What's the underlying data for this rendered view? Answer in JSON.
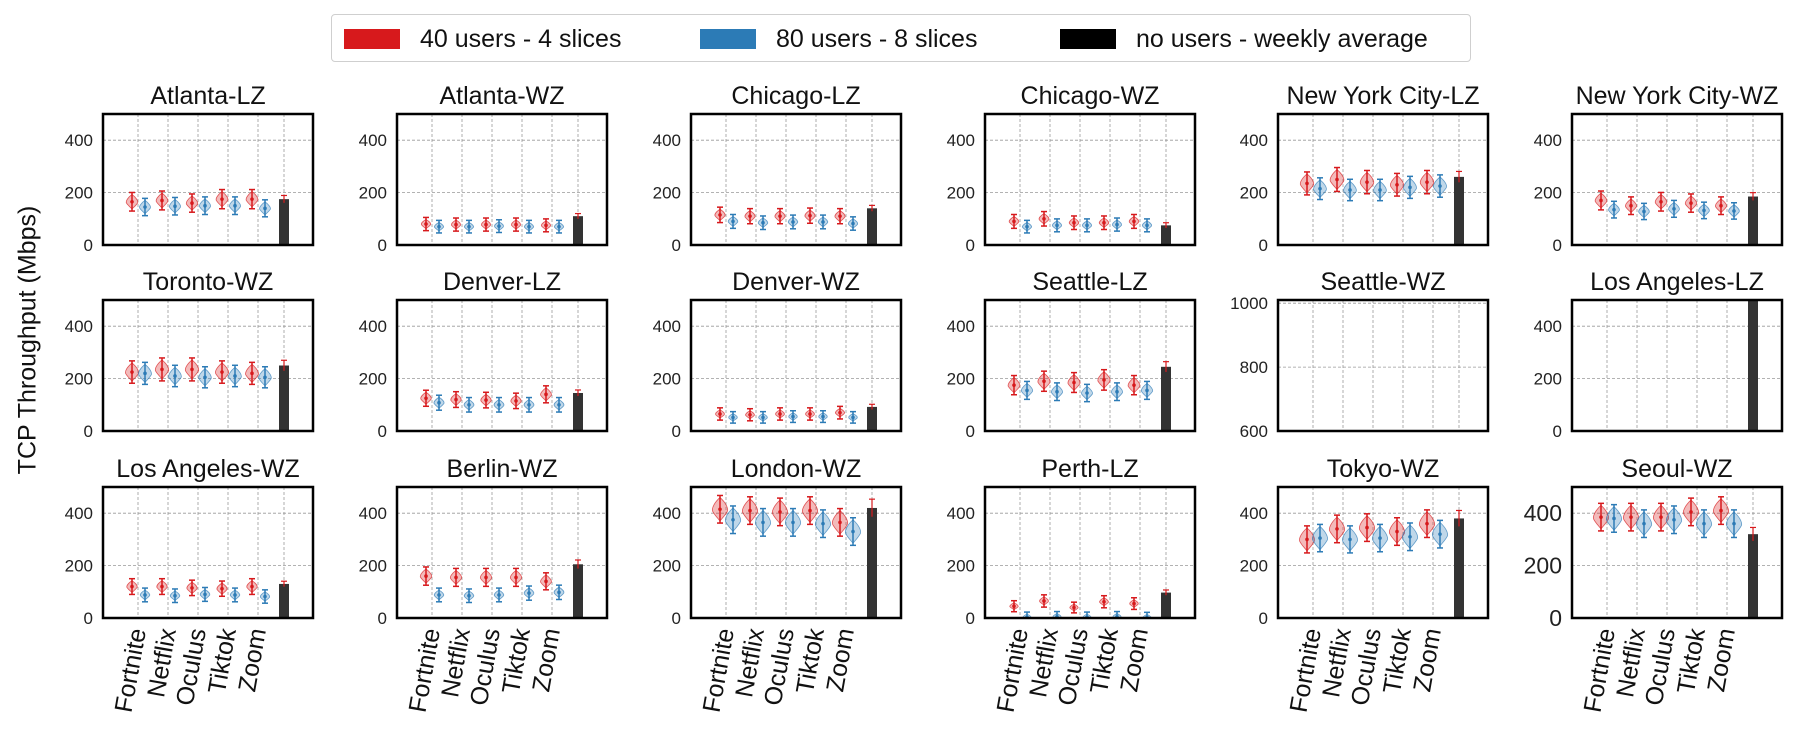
{
  "legend": [
    {
      "label": "40 users - 4 slices",
      "color": "#d7191c"
    },
    {
      "label": "80 users - 8 slices",
      "color": "#2c7bb6"
    },
    {
      "label": "no users - weekly average",
      "color": "#000000"
    }
  ],
  "ylabel": "TCP Throughput (Mbps)",
  "categories": [
    "Fortnite",
    "Netflix",
    "Oculus",
    "Tiktok",
    "Zoom"
  ],
  "chart_data": [
    {
      "type": "violin+bar",
      "title": "Atlanta-LZ",
      "ylim": [
        0,
        500
      ],
      "yticks": [
        0,
        200,
        400
      ],
      "series": [
        {
          "name": "40 users - 4 slices",
          "values": [
            165,
            170,
            160,
            175,
            175
          ]
        },
        {
          "name": "80 users - 8 slices",
          "values": [
            145,
            148,
            150,
            150,
            140
          ]
        },
        {
          "name": "no users - weekly average",
          "values": [
            175
          ]
        }
      ]
    },
    {
      "type": "violin+bar",
      "title": "Atlanta-WZ",
      "ylim": [
        0,
        500
      ],
      "yticks": [
        0,
        200,
        400
      ],
      "series": [
        {
          "name": "40 users - 4 slices",
          "values": [
            80,
            78,
            78,
            78,
            75
          ]
        },
        {
          "name": "80 users - 8 slices",
          "values": [
            70,
            70,
            72,
            70,
            70
          ]
        },
        {
          "name": "no users - weekly average",
          "values": [
            110
          ]
        }
      ]
    },
    {
      "type": "violin+bar",
      "title": "Chicago-LZ",
      "ylim": [
        0,
        500
      ],
      "yticks": [
        0,
        200,
        400
      ],
      "series": [
        {
          "name": "40 users - 4 slices",
          "values": [
            115,
            110,
            110,
            112,
            110
          ]
        },
        {
          "name": "80 users - 8 slices",
          "values": [
            90,
            85,
            88,
            88,
            82
          ]
        },
        {
          "name": "no users - weekly average",
          "values": [
            140
          ]
        }
      ]
    },
    {
      "type": "violin+bar",
      "title": "Chicago-WZ",
      "ylim": [
        0,
        500
      ],
      "yticks": [
        0,
        200,
        400
      ],
      "series": [
        {
          "name": "40 users - 4 slices",
          "values": [
            90,
            100,
            85,
            85,
            90
          ]
        },
        {
          "name": "80 users - 8 slices",
          "values": [
            70,
            75,
            75,
            78,
            75
          ]
        },
        {
          "name": "no users - weekly average",
          "values": [
            75
          ]
        }
      ]
    },
    {
      "type": "violin+bar",
      "title": "New York City-LZ",
      "ylim": [
        0,
        500
      ],
      "yticks": [
        0,
        200,
        400
      ],
      "series": [
        {
          "name": "40 users - 4 slices",
          "values": [
            235,
            250,
            240,
            230,
            240
          ]
        },
        {
          "name": "80 users - 8 slices",
          "values": [
            215,
            210,
            210,
            220,
            225
          ]
        },
        {
          "name": "no users - weekly average",
          "values": [
            260
          ]
        }
      ]
    },
    {
      "type": "violin+bar",
      "title": "New York City-WZ",
      "ylim": [
        0,
        500
      ],
      "yticks": [
        0,
        200,
        400
      ],
      "series": [
        {
          "name": "40 users - 4 slices",
          "values": [
            170,
            150,
            165,
            160,
            150
          ]
        },
        {
          "name": "80 users - 8 slices",
          "values": [
            135,
            128,
            138,
            132,
            130
          ]
        },
        {
          "name": "no users - weekly average",
          "values": [
            185
          ]
        }
      ]
    },
    {
      "type": "violin+bar",
      "title": "Toronto-WZ",
      "ylim": [
        0,
        500
      ],
      "yticks": [
        0,
        200,
        400
      ],
      "series": [
        {
          "name": "40 users - 4 slices",
          "values": [
            225,
            235,
            235,
            225,
            220
          ]
        },
        {
          "name": "80 users - 8 slices",
          "values": [
            220,
            210,
            205,
            210,
            205
          ]
        },
        {
          "name": "no users - weekly average",
          "values": [
            250
          ]
        }
      ]
    },
    {
      "type": "violin+bar",
      "title": "Denver-LZ",
      "ylim": [
        0,
        500
      ],
      "yticks": [
        0,
        200,
        400
      ],
      "series": [
        {
          "name": "40 users - 4 slices",
          "values": [
            125,
            120,
            118,
            115,
            140
          ]
        },
        {
          "name": "80 users - 8 slices",
          "values": [
            108,
            100,
            100,
            100,
            100
          ]
        },
        {
          "name": "no users - weekly average",
          "values": [
            145
          ]
        }
      ]
    },
    {
      "type": "violin+bar",
      "title": "Denver-WZ",
      "ylim": [
        0,
        500
      ],
      "yticks": [
        0,
        200,
        400
      ],
      "series": [
        {
          "name": "40 users - 4 slices",
          "values": [
            65,
            62,
            65,
            65,
            70
          ]
        },
        {
          "name": "80 users - 8 slices",
          "values": [
            52,
            52,
            55,
            55,
            52
          ]
        },
        {
          "name": "no users - weekly average",
          "values": [
            92
          ]
        }
      ]
    },
    {
      "type": "violin+bar",
      "title": "Seattle-LZ",
      "ylim": [
        0,
        500
      ],
      "yticks": [
        0,
        200,
        400
      ],
      "series": [
        {
          "name": "40 users - 4 slices",
          "values": [
            175,
            190,
            185,
            195,
            175
          ]
        },
        {
          "name": "80 users - 8 slices",
          "values": [
            155,
            150,
            145,
            150,
            155
          ]
        },
        {
          "name": "no users - weekly average",
          "values": [
            245
          ]
        }
      ]
    },
    {
      "type": "violin+bar",
      "title": "Seattle-WZ",
      "ylim": [
        600,
        1010
      ],
      "yticks": [
        600,
        800,
        1000
      ],
      "series": []
    },
    {
      "type": "violin+bar",
      "title": "Los Angeles-LZ",
      "ylim": [
        0,
        500
      ],
      "yticks": [
        0,
        200,
        400
      ],
      "series": [
        {
          "name": "no users - weekly average",
          "values": [
            500
          ]
        }
      ]
    },
    {
      "type": "violin+bar",
      "title": "Los Angeles-WZ",
      "ylim": [
        0,
        500
      ],
      "yticks": [
        0,
        200,
        400
      ],
      "series": [
        {
          "name": "40 users - 4 slices",
          "values": [
            120,
            120,
            115,
            112,
            120
          ]
        },
        {
          "name": "80 users - 8 slices",
          "values": [
            88,
            85,
            90,
            88,
            82
          ]
        },
        {
          "name": "no users - weekly average",
          "values": [
            130
          ]
        }
      ]
    },
    {
      "type": "violin+bar",
      "title": "Berlin-WZ",
      "ylim": [
        0,
        500
      ],
      "yticks": [
        0,
        200,
        400
      ],
      "series": [
        {
          "name": "40 users - 4 slices",
          "values": [
            160,
            155,
            155,
            155,
            140
          ]
        },
        {
          "name": "80 users - 8 slices",
          "values": [
            88,
            85,
            88,
            95,
            98
          ]
        },
        {
          "name": "no users - weekly average",
          "values": [
            205
          ]
        }
      ]
    },
    {
      "type": "violin+bar",
      "title": "London-WZ",
      "ylim": [
        0,
        500
      ],
      "yticks": [
        0,
        200,
        400
      ],
      "series": [
        {
          "name": "40 users - 4 slices",
          "values": [
            415,
            410,
            405,
            410,
            365
          ]
        },
        {
          "name": "80 users - 8 slices",
          "values": [
            375,
            365,
            365,
            360,
            330
          ]
        },
        {
          "name": "no users - weekly average",
          "values": [
            420
          ]
        }
      ]
    },
    {
      "type": "violin+bar",
      "title": "Perth-LZ",
      "ylim": [
        0,
        500
      ],
      "yticks": [
        0,
        200,
        400
      ],
      "series": [
        {
          "name": "40 users - 4 slices",
          "values": [
            45,
            65,
            40,
            62,
            55
          ]
        },
        {
          "name": "80 users - 8 slices",
          "values": [
            3,
            5,
            3,
            5,
            2
          ]
        },
        {
          "name": "no users - weekly average",
          "values": [
            97
          ]
        }
      ]
    },
    {
      "type": "violin+bar",
      "title": "Tokyo-WZ",
      "ylim": [
        0,
        500
      ],
      "yticks": [
        0,
        200,
        400
      ],
      "series": [
        {
          "name": "40 users - 4 slices",
          "values": [
            300,
            340,
            345,
            330,
            360
          ]
        },
        {
          "name": "80 users - 8 slices",
          "values": [
            305,
            300,
            305,
            310,
            320
          ]
        },
        {
          "name": "no users - weekly average",
          "values": [
            380
          ]
        }
      ]
    },
    {
      "type": "violin+bar",
      "title": "Seoul-WZ",
      "ylim": [
        0,
        500
      ],
      "yticks": [
        0,
        200,
        400
      ],
      "series": [
        {
          "name": "40 users - 4 slices",
          "values": [
            385,
            385,
            385,
            405,
            410
          ]
        },
        {
          "name": "80 users - 8 slices",
          "values": [
            380,
            360,
            375,
            360,
            360
          ]
        },
        {
          "name": "no users - weekly average",
          "values": [
            320
          ]
        }
      ]
    }
  ]
}
